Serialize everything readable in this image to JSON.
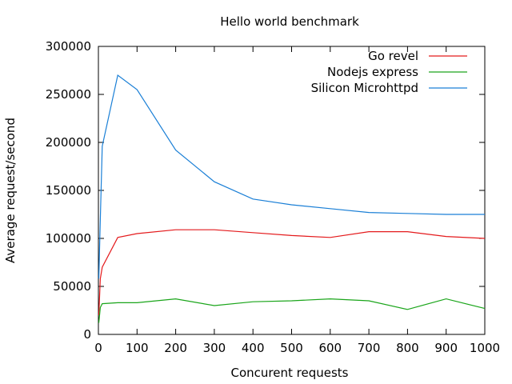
{
  "chart_data": {
    "type": "line",
    "title": "Hello world benchmark",
    "xlabel": "Concurent requests",
    "ylabel": "Average request/second",
    "xlim": [
      0,
      1000
    ],
    "ylim": [
      0,
      300000
    ],
    "xticks": [
      0,
      100,
      200,
      300,
      400,
      500,
      600,
      700,
      800,
      900,
      1000
    ],
    "yticks": [
      0,
      50000,
      100000,
      150000,
      200000,
      250000,
      300000
    ],
    "grid": false,
    "legend_position": "top-right",
    "series": [
      {
        "name": "Go revel",
        "color": "#e41a1c",
        "x": [
          1,
          5,
          10,
          50,
          100,
          200,
          300,
          400,
          500,
          600,
          700,
          800,
          900,
          1000
        ],
        "y": [
          20000,
          58000,
          70000,
          101000,
          105000,
          109000,
          109000,
          106000,
          103000,
          101000,
          107000,
          107000,
          102000,
          100000
        ]
      },
      {
        "name": "Nodejs express",
        "color": "#1aa51a",
        "x": [
          1,
          5,
          10,
          50,
          100,
          200,
          300,
          400,
          500,
          600,
          700,
          800,
          900,
          1000
        ],
        "y": [
          12000,
          28000,
          32000,
          33000,
          33000,
          37000,
          30000,
          34000,
          35000,
          37000,
          35000,
          26000,
          37000,
          27000
        ]
      },
      {
        "name": "Silicon Microhttpd",
        "color": "#1a7fd6",
        "x": [
          1,
          5,
          10,
          50,
          100,
          200,
          300,
          400,
          500,
          600,
          700,
          800,
          900,
          1000
        ],
        "y": [
          58000,
          120000,
          196000,
          270000,
          255000,
          192000,
          159000,
          141000,
          135000,
          131000,
          127000,
          126000,
          125000,
          125000
        ]
      }
    ]
  }
}
